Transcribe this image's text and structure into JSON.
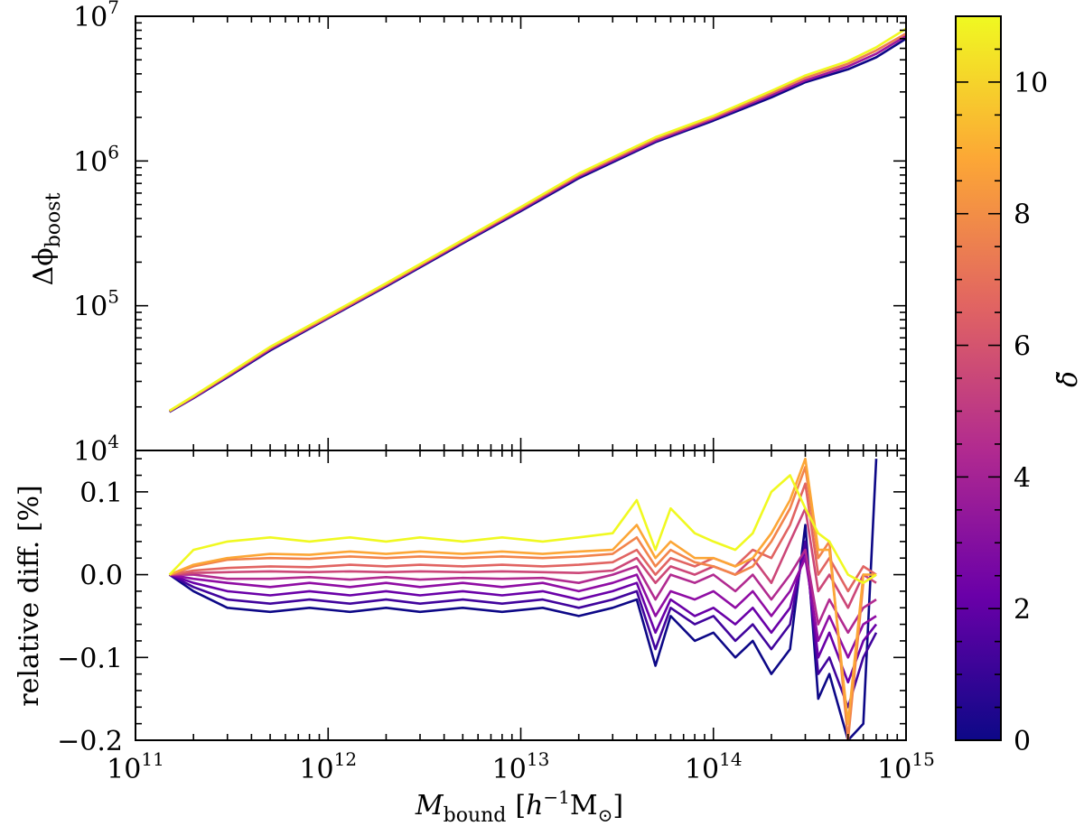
{
  "chart_data": [
    {
      "type": "line",
      "panel": "top",
      "xscale": "log",
      "yscale": "log",
      "xlim": [
        100000000000.0,
        1000000000000000.0
      ],
      "ylim": [
        10000.0,
        10000000.0
      ],
      "ylabel": "Δϕ_boost",
      "ylabel_main": "Δϕ",
      "ylabel_sub": "boost",
      "yticks": [
        {
          "value": 10000.0,
          "base": "10",
          "exp": "4"
        },
        {
          "value": 100000.0,
          "base": "10",
          "exp": "5"
        },
        {
          "value": 1000000.0,
          "base": "10",
          "exp": "6"
        },
        {
          "value": 10000000.0,
          "base": "10",
          "exp": "7"
        }
      ],
      "x": [
        150000000000.0,
        200000000000.0,
        300000000000.0,
        500000000000.0,
        1000000000000.0,
        2000000000000.0,
        5000000000000.0,
        10000000000000.0,
        20000000000000.0,
        50000000000000.0,
        100000000000000.0,
        200000000000000.0,
        300000000000000.0,
        500000000000000.0,
        700000000000000.0,
        1000000000000000.0
      ],
      "series": [
        {
          "name": "delta=0",
          "color": "#0d0887",
          "values": [
            18500.0,
            23000.0,
            32000.0,
            49000.0,
            82000.0,
            136000.0,
            270000.0,
            450000.0,
            760000.0,
            1350000.0,
            1900000.0,
            2750000.0,
            3500000.0,
            4300000.0,
            5200000.0,
            7000000.0
          ]
        },
        {
          "name": "delta=4",
          "color": "#9c179e",
          "values": [
            18600.0,
            23200.0,
            32500.0,
            50000.0,
            83000.0,
            138000.0,
            275000.0,
            460000.0,
            780000.0,
            1380000.0,
            1950000.0,
            2850000.0,
            3600000.0,
            4500000.0,
            5500000.0,
            7300000.0
          ]
        },
        {
          "name": "delta=8",
          "color": "#ed7953",
          "values": [
            18700.0,
            23500.0,
            33000.0,
            51000.0,
            84000.0,
            140000.0,
            280000.0,
            470000.0,
            800000.0,
            1420000.0,
            2000000.0,
            2950000.0,
            3750000.0,
            4700000.0,
            5800000.0,
            7600000.0
          ]
        },
        {
          "name": "delta=11",
          "color": "#f0f921",
          "values": [
            18800.0,
            23800.0,
            33500.0,
            52000.0,
            86000.0,
            143000.0,
            285000.0,
            480000.0,
            820000.0,
            1460000.0,
            2050000.0,
            3050000.0,
            3900000.0,
            4900000.0,
            6100000.0,
            8200000.0
          ]
        }
      ]
    },
    {
      "type": "line",
      "panel": "bottom",
      "xscale": "log",
      "xlim": [
        100000000000.0,
        1000000000000000.0
      ],
      "ylim": [
        -0.2,
        0.15
      ],
      "xlabel": "M_bound [h^-1 M_sun]",
      "xlabel_main": "M",
      "xlabel_sub": "bound",
      "xlabel_unit_open": "[",
      "xlabel_unit_h": "h",
      "xlabel_unit_exp": "−1",
      "xlabel_unit_m": "M",
      "xlabel_unit_sub": "⊙",
      "xlabel_unit_close": "]",
      "ylabel": "relative diff. [%]",
      "yticks": [
        {
          "value": -0.2,
          "label": "−0.2"
        },
        {
          "value": -0.1,
          "label": "−0.1"
        },
        {
          "value": 0.0,
          "label": "0.0"
        },
        {
          "value": 0.1,
          "label": "0.1"
        }
      ],
      "xticks": [
        {
          "value": 100000000000.0,
          "base": "10",
          "exp": "11"
        },
        {
          "value": 1000000000000.0,
          "base": "10",
          "exp": "12"
        },
        {
          "value": 10000000000000.0,
          "base": "10",
          "exp": "13"
        },
        {
          "value": 100000000000000.0,
          "base": "10",
          "exp": "14"
        },
        {
          "value": 1000000000000000.0,
          "base": "10",
          "exp": "15"
        }
      ],
      "x": [
        150000000000.0,
        200000000000.0,
        300000000000.0,
        500000000000.0,
        800000000000.0,
        1300000000000.0,
        2000000000000.0,
        3000000000000.0,
        5000000000000.0,
        8000000000000.0,
        13000000000000.0,
        20000000000000.0,
        30000000000000.0,
        40000000000000.0,
        50000000000000.0,
        60000000000000.0,
        80000000000000.0,
        100000000000000.0,
        130000000000000.0,
        160000000000000.0,
        200000000000000.0,
        250000000000000.0,
        300000000000000.0,
        350000000000000.0,
        400000000000000.0,
        500000000000000.0,
        600000000000000.0,
        700000000000000.0
      ],
      "series": [
        {
          "name": "delta=0",
          "color": "#0d0887",
          "values": [
            0.0,
            -0.02,
            -0.04,
            -0.045,
            -0.04,
            -0.045,
            -0.04,
            -0.045,
            -0.04,
            -0.045,
            -0.04,
            -0.05,
            -0.04,
            -0.03,
            -0.11,
            -0.05,
            -0.08,
            -0.07,
            -0.1,
            -0.08,
            -0.12,
            -0.09,
            0.06,
            -0.15,
            -0.12,
            -0.2,
            -0.18,
            0.14
          ]
        },
        {
          "name": "delta=1",
          "color": "#41049d",
          "values": [
            0.0,
            -0.015,
            -0.03,
            -0.035,
            -0.03,
            -0.035,
            -0.03,
            -0.035,
            -0.03,
            -0.035,
            -0.03,
            -0.04,
            -0.03,
            -0.02,
            -0.09,
            -0.04,
            -0.06,
            -0.05,
            -0.08,
            -0.06,
            -0.09,
            -0.06,
            0.04,
            -0.12,
            -0.1,
            -0.16,
            -0.1,
            -0.07
          ]
        },
        {
          "name": "delta=2",
          "color": "#6a00a8",
          "values": [
            0.0,
            -0.01,
            -0.02,
            -0.025,
            -0.02,
            -0.025,
            -0.02,
            -0.025,
            -0.02,
            -0.025,
            -0.02,
            -0.03,
            -0.02,
            -0.01,
            -0.07,
            -0.03,
            -0.05,
            -0.04,
            -0.06,
            -0.04,
            -0.07,
            -0.04,
            0.03,
            -0.1,
            -0.07,
            -0.13,
            -0.08,
            -0.06
          ]
        },
        {
          "name": "delta=3",
          "color": "#8f0da4",
          "values": [
            0.0,
            -0.005,
            -0.01,
            -0.015,
            -0.01,
            -0.015,
            -0.01,
            -0.015,
            -0.01,
            -0.015,
            -0.01,
            -0.02,
            -0.01,
            0.0,
            -0.05,
            -0.02,
            -0.03,
            -0.02,
            -0.04,
            -0.02,
            -0.05,
            -0.02,
            0.02,
            -0.08,
            -0.05,
            -0.1,
            -0.06,
            -0.05
          ]
        },
        {
          "name": "delta=4",
          "color": "#b12a90",
          "values": [
            0.0,
            0.0,
            -0.005,
            -0.005,
            -0.003,
            -0.006,
            -0.003,
            -0.006,
            -0.004,
            -0.005,
            -0.004,
            -0.01,
            0.0,
            0.01,
            -0.03,
            0.0,
            -0.01,
            0.0,
            -0.02,
            0.0,
            -0.03,
            0.0,
            0.03,
            -0.06,
            -0.03,
            -0.07,
            -0.04,
            -0.03
          ]
        },
        {
          "name": "delta=6",
          "color": "#cc4778",
          "values": [
            0.0,
            0.002,
            0.003,
            0.004,
            0.003,
            0.004,
            0.003,
            0.004,
            0.003,
            0.004,
            0.003,
            0.002,
            0.005,
            0.02,
            -0.01,
            0.01,
            0.0,
            0.01,
            0.0,
            0.02,
            -0.01,
            0.04,
            0.08,
            -0.02,
            0.0,
            -0.04,
            0.0,
            -0.01
          ]
        },
        {
          "name": "delta=8",
          "color": "#e16462",
          "values": [
            0.0,
            0.005,
            0.008,
            0.01,
            0.009,
            0.012,
            0.01,
            0.012,
            0.01,
            0.012,
            0.01,
            0.012,
            0.015,
            0.03,
            0.0,
            0.02,
            0.01,
            0.02,
            0.01,
            0.03,
            0.02,
            0.06,
            0.11,
            0.0,
            0.02,
            -0.02,
            0.01,
            0.0
          ]
        },
        {
          "name": "delta=9",
          "color": "#f2844b",
          "values": [
            0.0,
            0.01,
            0.018,
            0.02,
            0.019,
            0.022,
            0.02,
            0.022,
            0.02,
            0.022,
            0.02,
            0.022,
            0.025,
            0.045,
            0.01,
            0.03,
            0.015,
            0.01,
            0.0,
            0.01,
            0.04,
            0.08,
            0.13,
            0.02,
            0.04,
            -0.2,
            -0.01,
            0.0
          ]
        },
        {
          "name": "delta=10",
          "color": "#fca636",
          "values": [
            0.0,
            0.012,
            0.02,
            0.025,
            0.024,
            0.028,
            0.025,
            0.028,
            0.025,
            0.028,
            0.025,
            0.028,
            0.03,
            0.06,
            0.02,
            0.04,
            0.02,
            0.02,
            0.01,
            0.02,
            0.05,
            0.09,
            0.14,
            0.03,
            0.03,
            -0.18,
            0.0,
            0.0
          ]
        },
        {
          "name": "delta=11",
          "color": "#f0f921",
          "values": [
            0.0,
            0.03,
            0.04,
            0.045,
            0.04,
            0.045,
            0.04,
            0.045,
            0.04,
            0.045,
            0.04,
            0.045,
            0.05,
            0.09,
            0.03,
            0.08,
            0.05,
            0.04,
            0.03,
            0.05,
            0.1,
            0.12,
            0.08,
            0.05,
            0.04,
            0.0,
            -0.01,
            0.0
          ]
        }
      ]
    }
  ],
  "colorbar": {
    "label": "δ̃",
    "min": 0,
    "max": 11,
    "ticks": [
      {
        "value": 0,
        "label": "0"
      },
      {
        "value": 2,
        "label": "2"
      },
      {
        "value": 4,
        "label": "4"
      },
      {
        "value": 6,
        "label": "6"
      },
      {
        "value": 8,
        "label": "8"
      },
      {
        "value": 10,
        "label": "10"
      }
    ],
    "colormap": "plasma",
    "stops": [
      "#0d0887",
      "#6a00a8",
      "#b12a90",
      "#e16462",
      "#fca636",
      "#f0f921"
    ]
  }
}
